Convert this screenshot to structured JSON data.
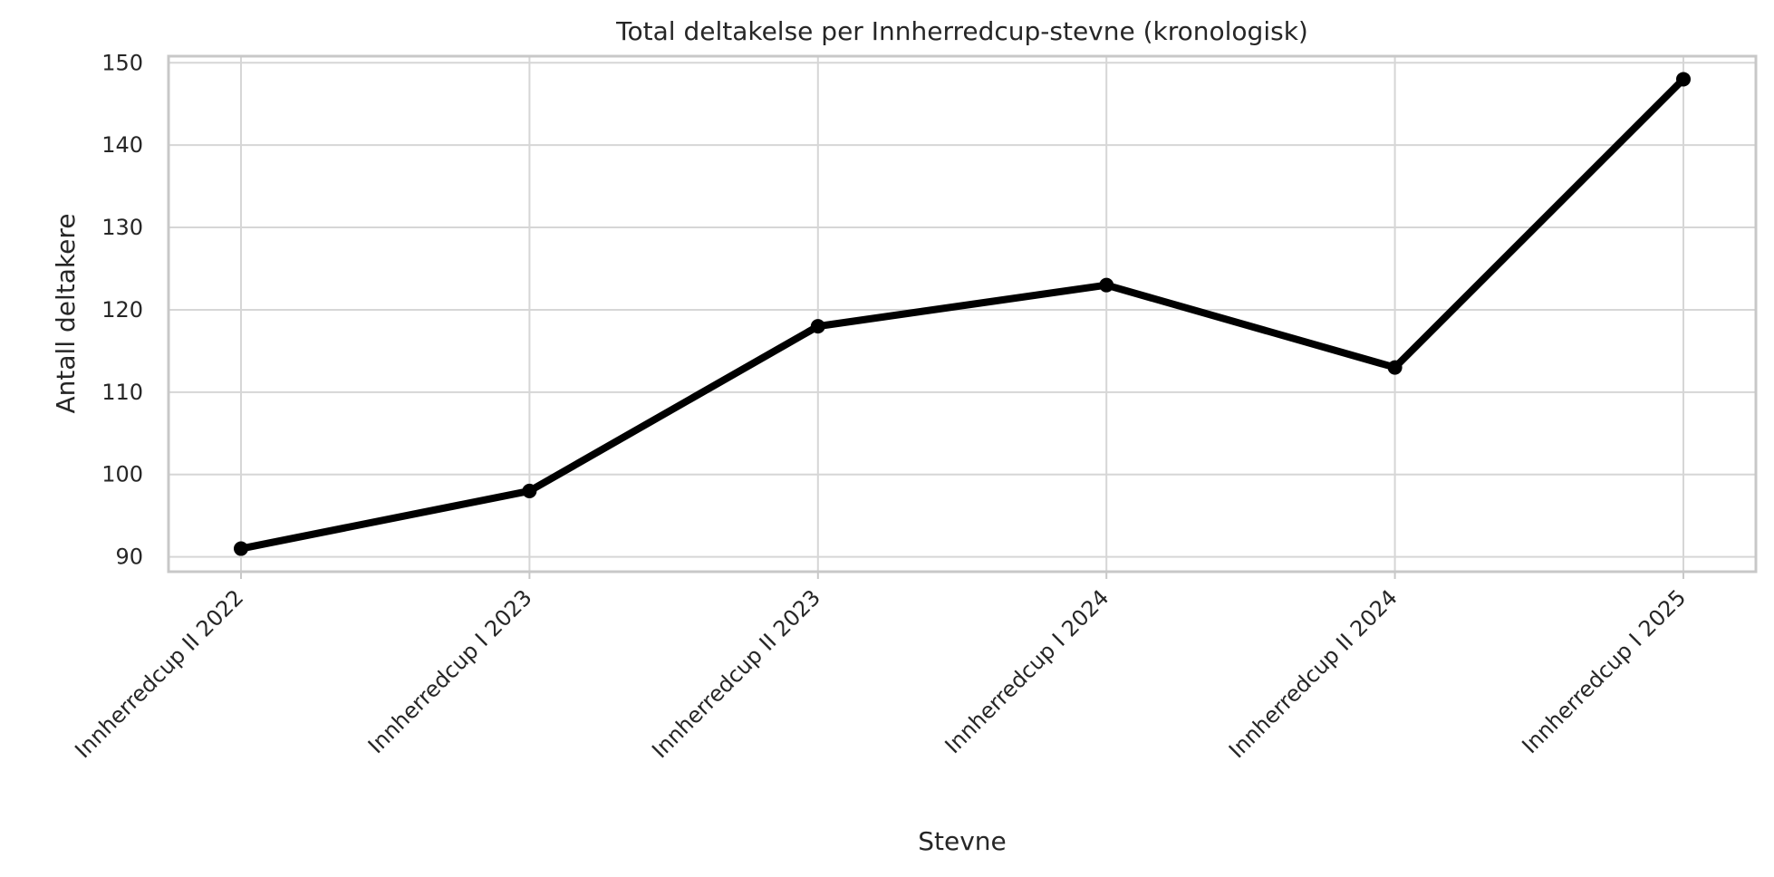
{
  "chart_data": {
    "type": "line",
    "title": "Total deltakelse per Innherredcup-stevne (kronologisk)",
    "xlabel": "Stevne",
    "ylabel": "Antall deltakere",
    "categories": [
      "Innherredcup II 2022",
      "Innherredcup I 2023",
      "Innherredcup II 2023",
      "Innherredcup I 2024",
      "Innherredcup II 2024",
      "Innherredcup I 2025"
    ],
    "series": [
      {
        "values": [
          91,
          98,
          118,
          123,
          113,
          148
        ],
        "color": "#000000"
      }
    ],
    "ylim": [
      88.2,
      150.8
    ],
    "yticks": [
      90,
      100,
      110,
      120,
      130,
      140,
      150
    ],
    "grid": true,
    "legend": "none"
  }
}
